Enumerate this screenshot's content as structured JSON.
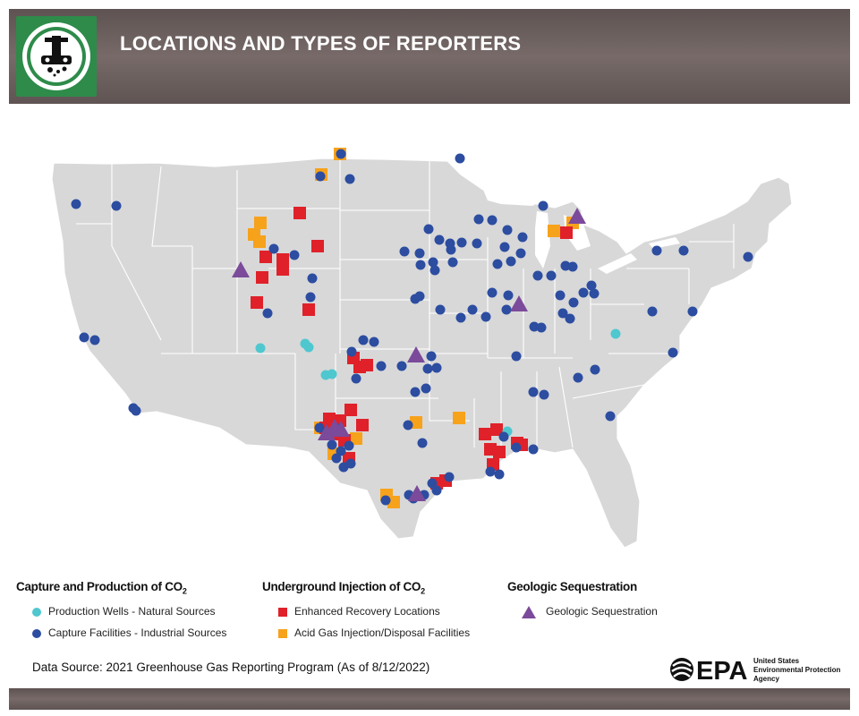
{
  "header": {
    "title": "LOCATIONS AND TYPES OF REPORTERS"
  },
  "colors": {
    "production_wells": "#4fc7cf",
    "capture_facilities": "#2c4da0",
    "enhanced_recovery": "#e02129",
    "acid_gas": "#f7a21b",
    "geologic": "#7b4a9a",
    "map_fill": "#d8d8d9",
    "map_lines": "#ffffff",
    "header_bg": "#6b5f5e",
    "logo_green": "#2e8b4a"
  },
  "legend": {
    "groups": [
      {
        "heading_prefix": "Capture and Production of CO",
        "heading_sub": "2",
        "items": [
          {
            "label": "Production Wells - Natural Sources",
            "marker": "circle",
            "color_key": "production_wells"
          },
          {
            "label": "Capture Facilities - Industrial Sources",
            "marker": "circle",
            "color_key": "capture_facilities"
          }
        ]
      },
      {
        "heading_prefix": "Underground Injection of CO",
        "heading_sub": "2",
        "items": [
          {
            "label": "Enhanced Recovery Locations",
            "marker": "square",
            "color_key": "enhanced_recovery"
          },
          {
            "label": "Acid Gas Injection/Disposal Facilities",
            "marker": "square",
            "color_key": "acid_gas"
          }
        ]
      },
      {
        "heading_prefix": "Geologic Sequestration",
        "heading_sub": "",
        "items": [
          {
            "label": "Geologic Sequestration",
            "marker": "triangle",
            "color_key": "geologic"
          }
        ]
      }
    ]
  },
  "footer": {
    "data_source": "Data Source: 2021 Greenhouse Gas Reporting Program (As of 8/12/2022)",
    "agency_mark": "EPA",
    "agency_name_lines": [
      "United States",
      "Environmental Protection",
      "Agency"
    ]
  },
  "map": {
    "region": "contiguous United States",
    "marker_counts_approx": {
      "production_wells": 8,
      "capture_facilities": 120,
      "enhanced_recovery": 40,
      "acid_gas": 18,
      "geologic": 10
    }
  }
}
